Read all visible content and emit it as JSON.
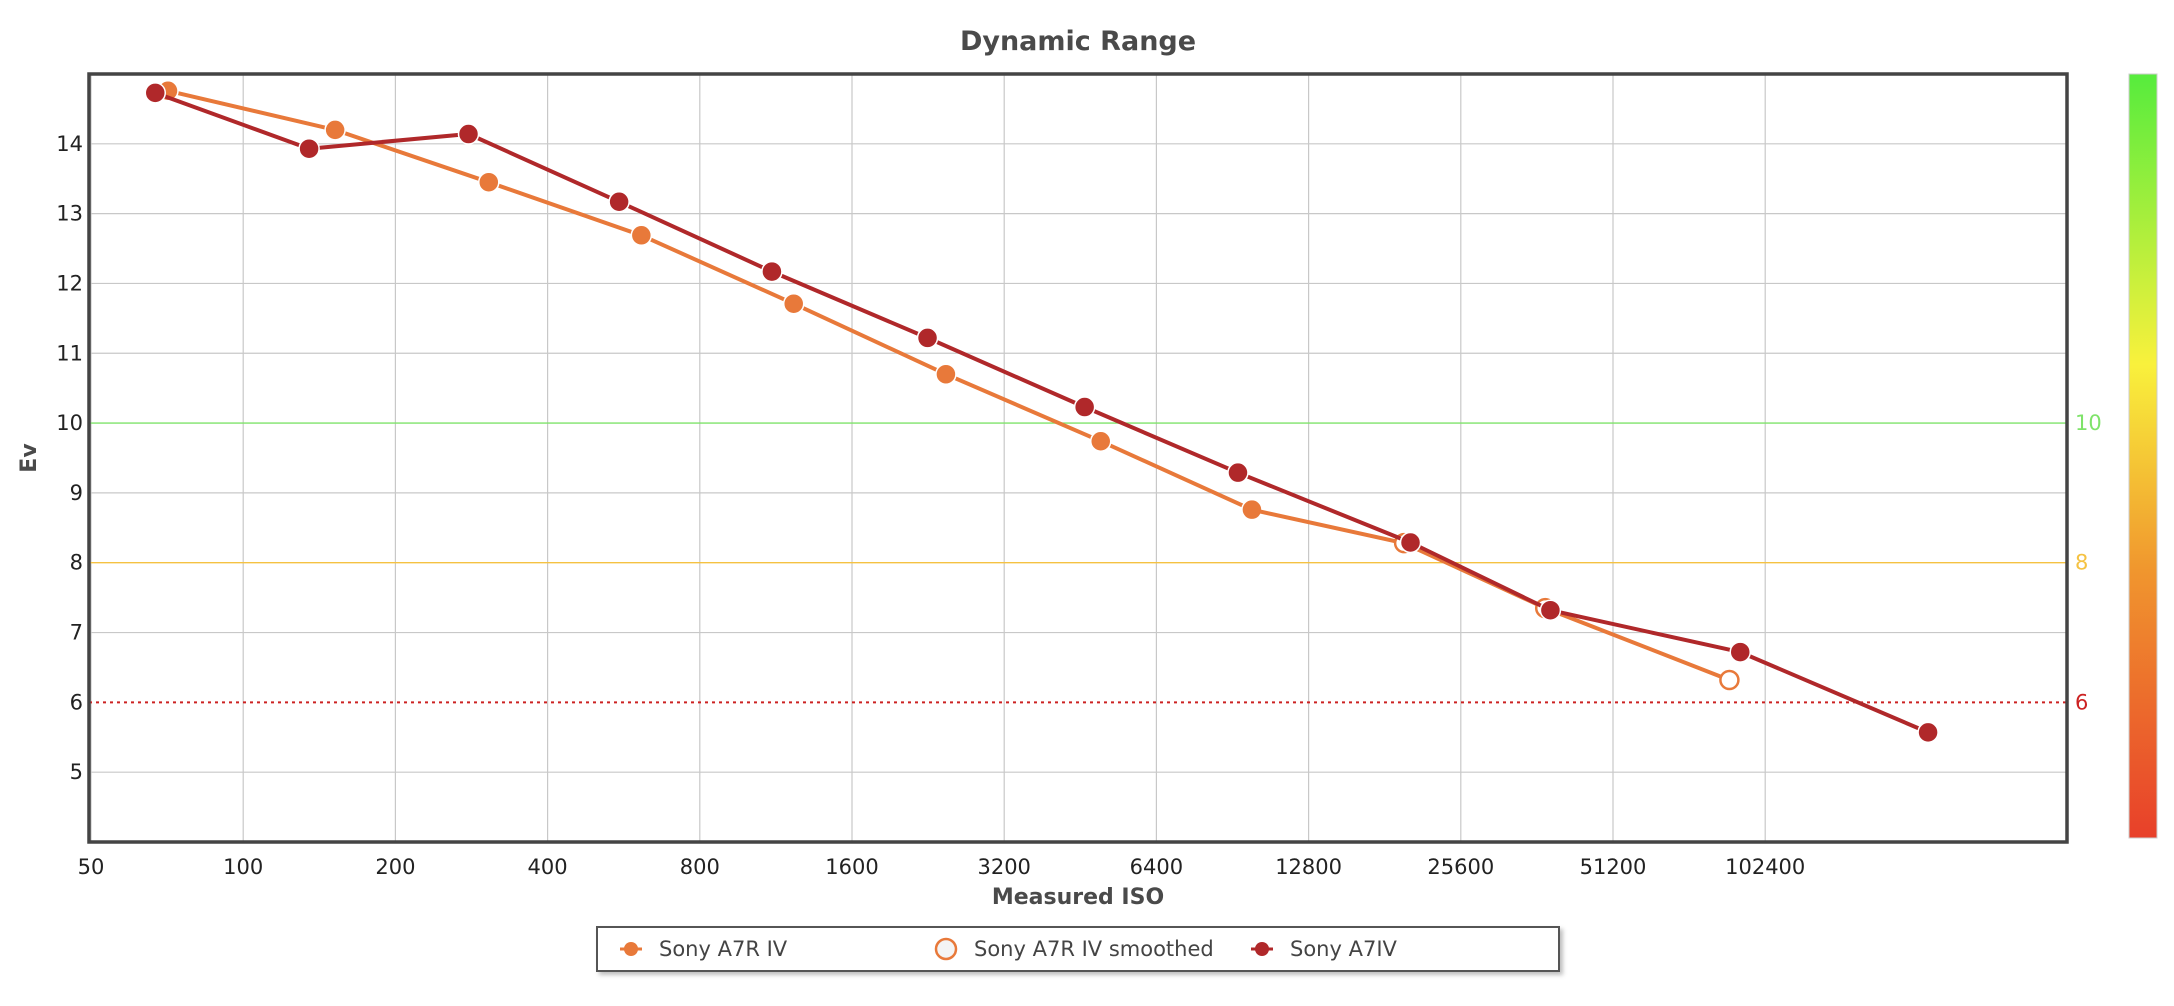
{
  "chart_data": {
    "type": "line",
    "title": "Dynamic Range",
    "xlabel": "Measured ISO",
    "ylabel": "Ev",
    "x_scale": "log2",
    "x_ticks": [
      "50",
      "100",
      "200",
      "400",
      "800",
      "1600",
      "3200",
      "6400",
      "12800",
      "25600",
      "51200",
      "102400"
    ],
    "xlim": [
      50,
      409600
    ],
    "y_ticks": [
      "5",
      "6",
      "7",
      "8",
      "9",
      "10",
      "11",
      "12",
      "13",
      "14"
    ],
    "ylim": [
      4,
      15
    ],
    "grid": true,
    "reference_lines": [
      {
        "y": 10,
        "label": "10",
        "color": "#7fe36a",
        "style": "solid"
      },
      {
        "y": 8,
        "label": "8",
        "color": "#f5c242",
        "style": "solid"
      },
      {
        "y": 6,
        "label": "6",
        "color": "#cc2222",
        "style": "dotted"
      }
    ],
    "colorbar": {
      "colors": [
        "#e8402a",
        "#f0962e",
        "#f9f13c",
        "#56ec3d"
      ]
    },
    "series": [
      {
        "name": "Sony A7R IV",
        "color": "#e8793a",
        "marker": "filled-circle",
        "points": [
          [
            71,
            14.76
          ],
          [
            152,
            14.2
          ],
          [
            306,
            13.45
          ],
          [
            613,
            12.69
          ],
          [
            1227,
            11.71
          ],
          [
            2454,
            10.7
          ],
          [
            4967,
            9.74
          ],
          [
            9888,
            8.76
          ]
        ]
      },
      {
        "name": "Sony A7R IV smoothed",
        "color": "#e8793a",
        "marker": "open-circle",
        "points": [
          [
            9888,
            8.76
          ],
          [
            19776,
            8.28
          ],
          [
            37600,
            7.35
          ],
          [
            87000,
            6.32
          ]
        ]
      },
      {
        "name": "Sony A7IV",
        "color": "#b0282a",
        "marker": "filled-circle",
        "points": [
          [
            67,
            14.73
          ],
          [
            135,
            13.93
          ],
          [
            279,
            14.14
          ],
          [
            554,
            13.17
          ],
          [
            1111,
            12.17
          ],
          [
            2257,
            11.22
          ],
          [
            4616,
            10.23
          ],
          [
            9279,
            9.29
          ],
          [
            20360,
            8.29
          ],
          [
            38500,
            7.32
          ],
          [
            91400,
            6.72
          ],
          [
            215000,
            5.57
          ]
        ]
      }
    ],
    "legend": {
      "position": "bottom-center",
      "items": [
        "Sony A7R IV",
        "Sony A7R IV smoothed",
        "Sony A7IV"
      ]
    }
  }
}
